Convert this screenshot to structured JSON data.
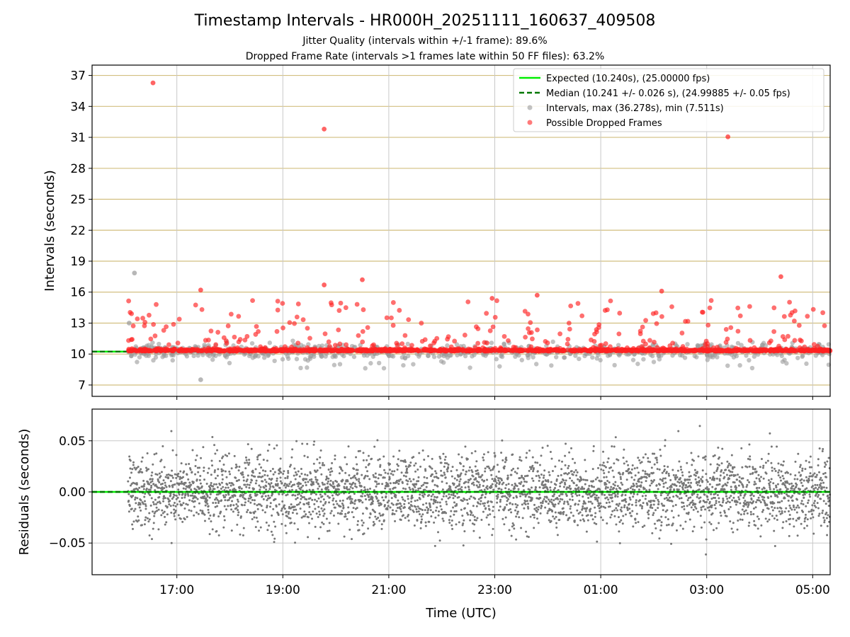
{
  "figure": {
    "title": "Timestamp Intervals - HR000H_20251111_160637_409508",
    "subtitle_1": "Jitter Quality (intervals within +/-1 frame): 89.6%",
    "subtitle_2": "Dropped Frame Rate (intervals >1 frames late within 50 FF files): 63.2%",
    "colors": {
      "expected": "#00ee00",
      "median": "#007700",
      "intervals": "#999999",
      "dropped": "#ff2222",
      "residuals": "#777777",
      "hgrid_top": "#d2bf80",
      "grid": "#c8c8c8"
    }
  },
  "chart_data": [
    {
      "type": "scatter",
      "panel": "intervals",
      "xlabel": "",
      "ylabel": "Intervals (seconds)",
      "x_range_hours": [
        15.4,
        29.33
      ],
      "ylim": [
        5.9,
        38.0
      ],
      "y_ticks": [
        7,
        10,
        13,
        16,
        19,
        22,
        25,
        28,
        31,
        34,
        37
      ],
      "expected_interval": 10.24,
      "median_interval": 10.241,
      "legend": {
        "placement": "upper-right",
        "entries": [
          {
            "key": "expected",
            "label": "Expected (10.240s), (25.00000 fps)"
          },
          {
            "key": "median",
            "label": "Median (10.241 +/- 0.026 s), (24.99885 +/- 0.05 fps)"
          },
          {
            "key": "intervals",
            "label": "Intervals, max (36.278s), min (7.511s)"
          },
          {
            "key": "dropped",
            "label": "Possible Dropped Frames"
          }
        ]
      },
      "intervals_max": 36.278,
      "intervals_min": 7.511,
      "dropped_outliers": [
        {
          "t": 16.55,
          "v": 36.278
        },
        {
          "t": 19.78,
          "v": 31.8
        },
        {
          "t": 27.4,
          "v": 31.05
        },
        {
          "t": 19.78,
          "v": 16.7
        },
        {
          "t": 20.5,
          "v": 17.2
        },
        {
          "t": 28.4,
          "v": 17.5
        },
        {
          "t": 17.45,
          "v": 16.2
        },
        {
          "t": 26.15,
          "v": 16.1
        },
        {
          "t": 23.8,
          "v": 15.7
        },
        {
          "t": 22.95,
          "v": 15.4
        }
      ],
      "gray_outliers": [
        {
          "t": 16.2,
          "v": 17.85
        },
        {
          "t": 17.45,
          "v": 7.511
        },
        {
          "t": 16.1,
          "v": 13.0
        }
      ]
    },
    {
      "type": "scatter",
      "panel": "residuals",
      "xlabel": "Time (UTC)",
      "ylabel": "Residuals (seconds)",
      "x_range_hours": [
        15.4,
        29.33
      ],
      "ylim": [
        -0.081,
        0.081
      ],
      "y_ticks": [
        -0.05,
        0.0,
        0.05
      ],
      "y_tick_labels": [
        "−0.05",
        "0.00",
        "0.05"
      ],
      "x_ticks": [
        17,
        19,
        21,
        23,
        25,
        27,
        29
      ],
      "x_tick_labels": [
        "17:00",
        "19:00",
        "21:00",
        "23:00",
        "01:00",
        "03:00",
        "05:00"
      ],
      "data_start_hour": 16.08,
      "data_end_hour": 29.33,
      "residual_std": 0.018
    }
  ]
}
